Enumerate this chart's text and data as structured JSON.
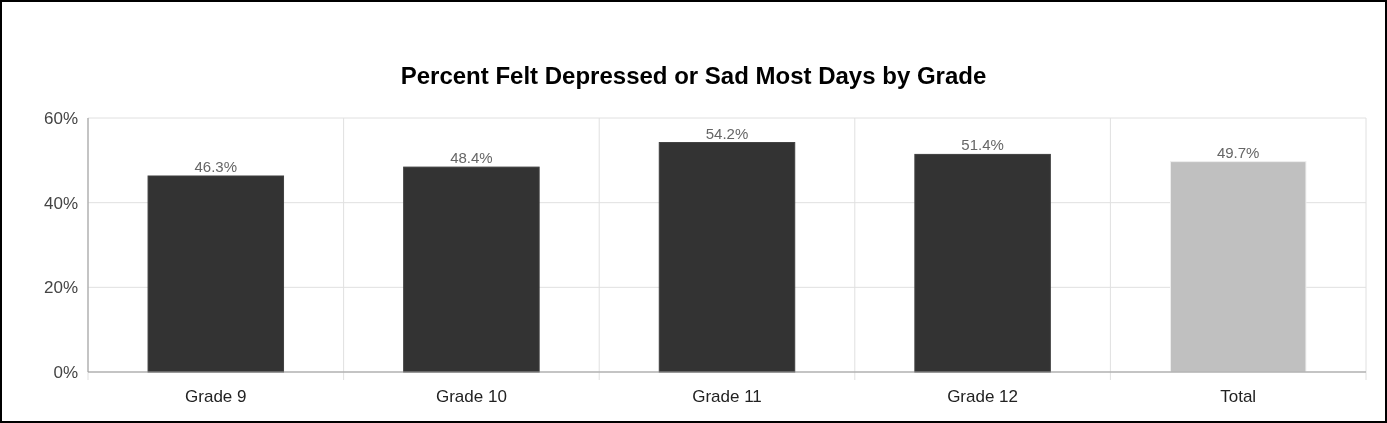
{
  "chart_data": {
    "type": "bar",
    "title": "Percent Felt Depressed or Sad Most Days by Grade",
    "categories": [
      "Grade 9",
      "Grade 10",
      "Grade 11",
      "Grade 12",
      "Total"
    ],
    "values": [
      46.3,
      48.4,
      54.2,
      51.4,
      49.7
    ],
    "colors": [
      "#333333",
      "#333333",
      "#333333",
      "#333333",
      "#c0c0c0"
    ],
    "value_labels": [
      "46.3%",
      "48.4%",
      "54.2%",
      "51.4%",
      "49.7%"
    ],
    "ylim": [
      0,
      60
    ],
    "yticks": [
      {
        "value": 0,
        "label": "0%"
      },
      {
        "value": 20,
        "label": "20%"
      },
      {
        "value": 40,
        "label": "40%"
      },
      {
        "value": 60,
        "label": "60%"
      }
    ],
    "grid": true
  }
}
